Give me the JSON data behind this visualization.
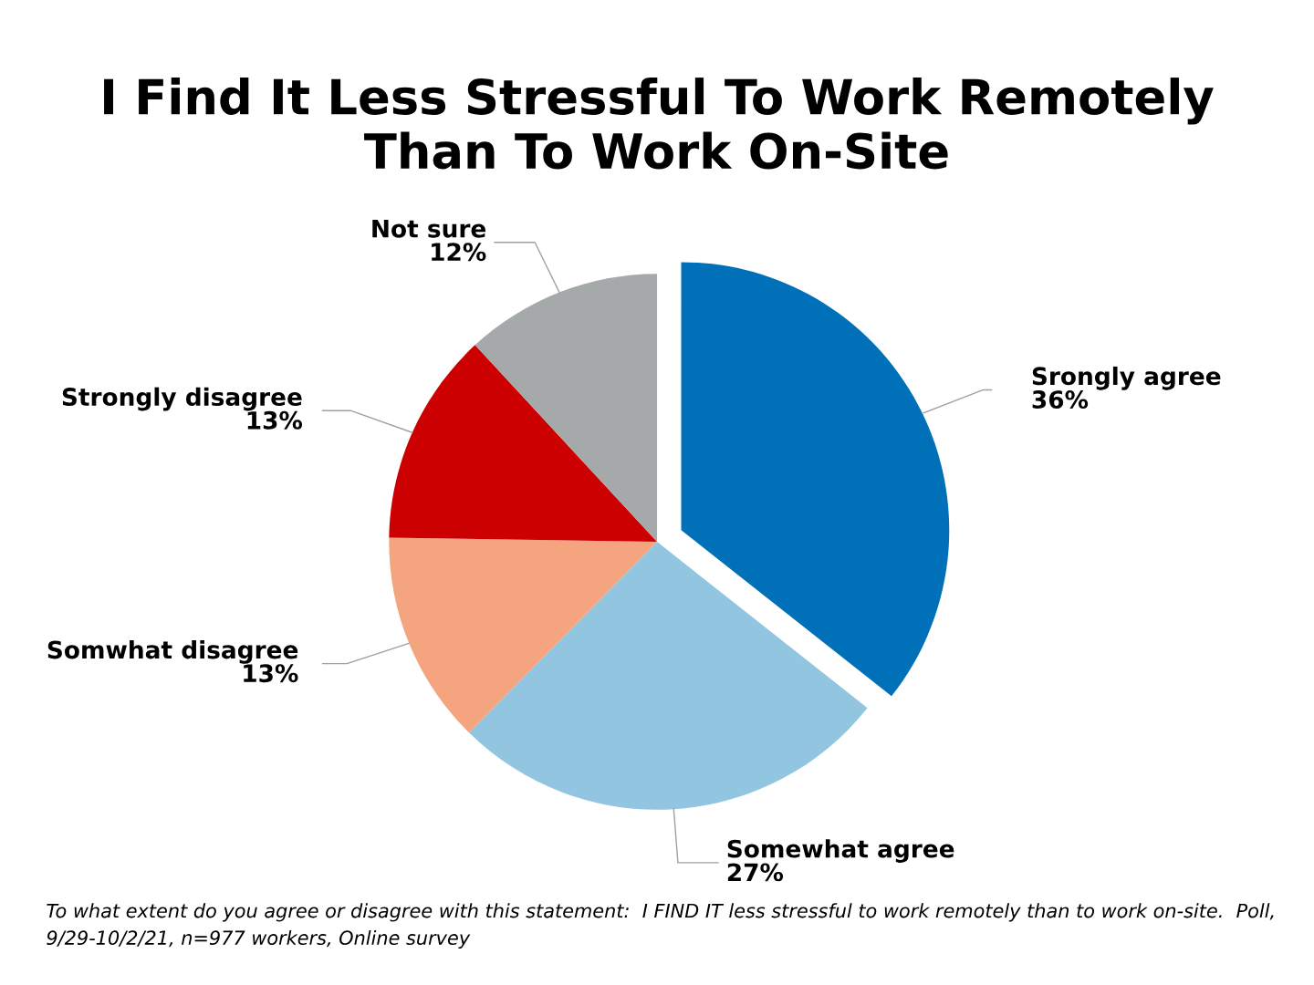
{
  "chart_data": {
    "type": "pie",
    "title": "I Find It Less Stressful To Work Remotely\nThan To Work On-Site",
    "categories": [
      "Srongly agree",
      "Somewhat agree",
      "Somwhat disagree",
      "Strongly disagree",
      "Not sure"
    ],
    "values": [
      36,
      27,
      13,
      13,
      12
    ],
    "value_labels": [
      "36%",
      "27%",
      "13%",
      "13%",
      "12%"
    ],
    "colors": [
      "#0070b8",
      "#92c5e0",
      "#f4a57f",
      "#cc0000",
      "#a6a9aa"
    ],
    "legend": false,
    "annotations": [
      "To what extent do you agree or disagree with this statement:  I FIND IT less stressful to work remotely than to work on-site.  Poll, 9/29-10/2/21, n=977 workers, Online survey"
    ]
  }
}
